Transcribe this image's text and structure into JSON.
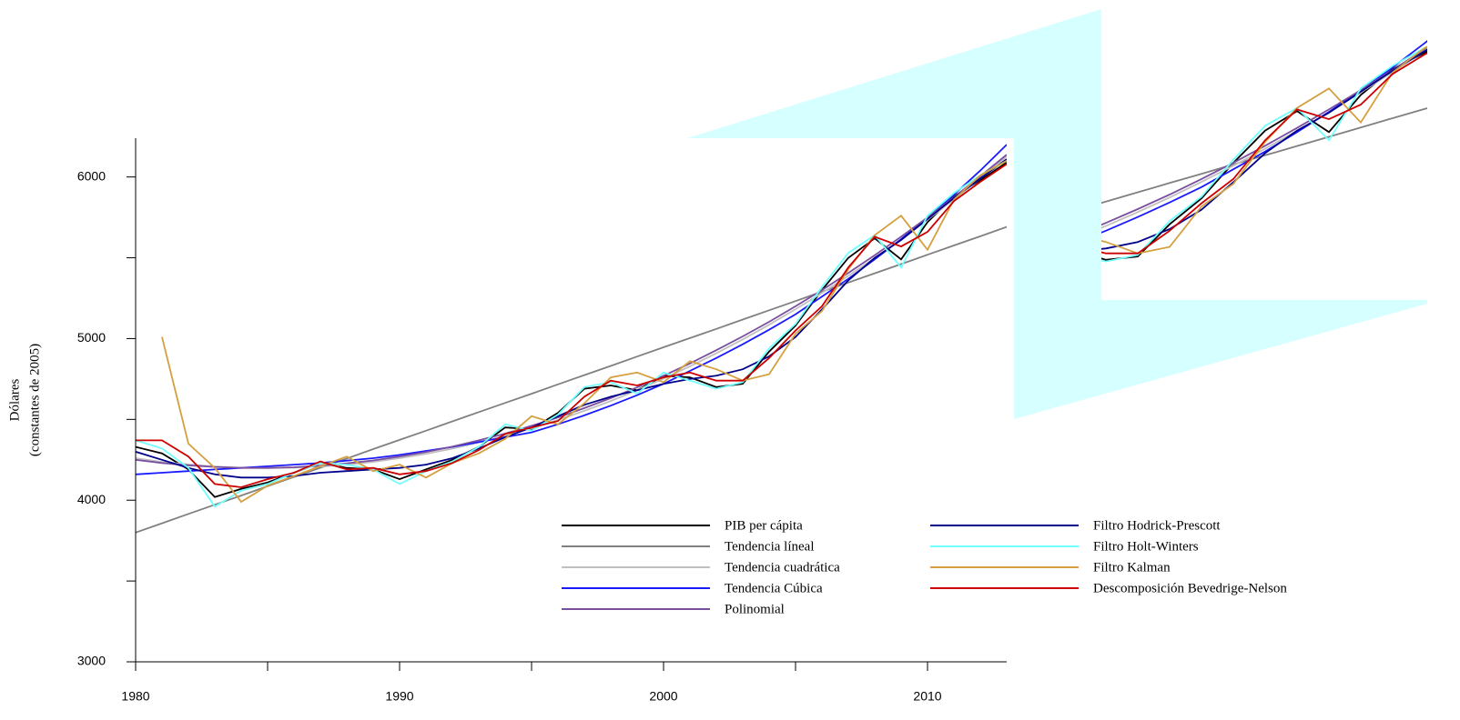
{
  "chart_data": {
    "type": "line",
    "ylabel": [
      "Dólares",
      "(constantes de 2005)"
    ],
    "xlim": [
      1980,
      2013
    ],
    "ylim": [
      3000,
      6240
    ],
    "xticks": [
      1980,
      1990,
      2000,
      2010
    ],
    "xminorticks": [
      1985,
      1995,
      2005
    ],
    "yticks": [
      3000,
      4000,
      5000,
      6000
    ],
    "yminorticks": [
      3500,
      4500,
      5500
    ],
    "x": [
      1980,
      1981,
      1982,
      1983,
      1984,
      1985,
      1986,
      1987,
      1988,
      1989,
      1990,
      1991,
      1992,
      1993,
      1994,
      1995,
      1996,
      1997,
      1998,
      1999,
      2000,
      2001,
      2002,
      2003,
      2004,
      2005,
      2006,
      2007,
      2008,
      2009,
      2010,
      2011,
      2012,
      2013
    ],
    "series": [
      {
        "name": "PIB per cápita",
        "color": "#000000",
        "values": [
          4330,
          4290,
          4190,
          4020,
          4070,
          4110,
          4170,
          4230,
          4200,
          4190,
          4130,
          4190,
          4250,
          4330,
          4450,
          4440,
          4540,
          4690,
          4710,
          4680,
          4770,
          4760,
          4700,
          4720,
          4920,
          5080,
          5300,
          5500,
          5620,
          5490,
          5720,
          5880,
          5980,
          6090
        ]
      },
      {
        "name": "Tendencia líneal",
        "color": "#808080",
        "values": [
          3800,
          3857,
          3915,
          3972,
          4029,
          4087,
          4144,
          4201,
          4258,
          4316,
          4373,
          4430,
          4488,
          4545,
          4602,
          4659,
          4717,
          4774,
          4831,
          4889,
          4946,
          5003,
          5060,
          5118,
          5175,
          5232,
          5290,
          5347,
          5404,
          5461,
          5519,
          5576,
          5633,
          5691
        ]
      },
      {
        "name": "Tendencia cuadrática",
        "color": "#c0c0c0",
        "values": [
          4260,
          4237,
          4221,
          4208,
          4201,
          4199,
          4201,
          4208,
          4220,
          4237,
          4260,
          4287,
          4319,
          4356,
          4398,
          4445,
          4496,
          4553,
          4614,
          4681,
          4752,
          4828,
          4909,
          4995,
          5086,
          5182,
          5282,
          5388,
          5498,
          5612,
          5736,
          5861,
          5991,
          6127
        ]
      },
      {
        "name": "Tendencia Cúbica",
        "color": "#1a1aff",
        "values": [
          4160,
          4170,
          4180,
          4190,
          4200,
          4210,
          4220,
          4230,
          4245,
          4260,
          4280,
          4305,
          4330,
          4360,
          4390,
          4420,
          4470,
          4525,
          4585,
          4650,
          4720,
          4800,
          4880,
          4965,
          5055,
          5150,
          5260,
          5370,
          5490,
          5615,
          5750,
          5890,
          6040,
          6200
        ]
      },
      {
        "name": "Polinomial",
        "color": "#7a4fa0",
        "values": [
          4250,
          4230,
          4216,
          4206,
          4200,
          4200,
          4204,
          4214,
          4228,
          4246,
          4270,
          4298,
          4332,
          4370,
          4412,
          4460,
          4512,
          4570,
          4632,
          4698,
          4770,
          4846,
          4928,
          5014,
          5104,
          5200,
          5300,
          5406,
          5516,
          5630,
          5750,
          5874,
          6004,
          6138
        ]
      },
      {
        "name": "Filtro Hodrick-Prescott",
        "color": "#00008b",
        "values": [
          4300,
          4250,
          4200,
          4160,
          4140,
          4140,
          4150,
          4170,
          4180,
          4190,
          4200,
          4220,
          4260,
          4320,
          4390,
          4450,
          4520,
          4590,
          4640,
          4680,
          4720,
          4750,
          4770,
          4810,
          4890,
          5010,
          5180,
          5360,
          5500,
          5610,
          5740,
          5870,
          5990,
          6110
        ]
      },
      {
        "name": "Filtro Holt-Winters",
        "color": "#70ffff",
        "values": [
          4370,
          4320,
          4200,
          3960,
          4060,
          4100,
          4170,
          4230,
          4220,
          4190,
          4100,
          4180,
          4240,
          4330,
          4470,
          4430,
          4530,
          4700,
          4730,
          4660,
          4790,
          4740,
          4690,
          4730,
          4940,
          5090,
          5320,
          5530,
          5640,
          5440,
          5760,
          5900,
          6010,
          6100
        ]
      },
      {
        "name": "Filtro Kalman",
        "color": "#d4a040",
        "values": [
          null,
          5010,
          4350,
          4200,
          3990,
          4090,
          4150,
          4210,
          4270,
          4180,
          4220,
          4140,
          4230,
          4290,
          4380,
          4520,
          4470,
          4600,
          4760,
          4790,
          4730,
          4860,
          4810,
          4740,
          4780,
          5030,
          5170,
          5430,
          5640,
          5760,
          5550,
          5860,
          6010,
          6100
        ]
      },
      {
        "name": "Descomposición Bevedrige-Nelson",
        "color": "#cc0000",
        "values": [
          4370,
          4370,
          4270,
          4100,
          4080,
          4130,
          4170,
          4240,
          4190,
          4200,
          4160,
          4180,
          4230,
          4310,
          4410,
          4450,
          4490,
          4640,
          4740,
          4710,
          4760,
          4790,
          4740,
          4740,
          4880,
          5050,
          5200,
          5440,
          5630,
          5570,
          5660,
          5850,
          5970,
          6080
        ]
      }
    ]
  }
}
